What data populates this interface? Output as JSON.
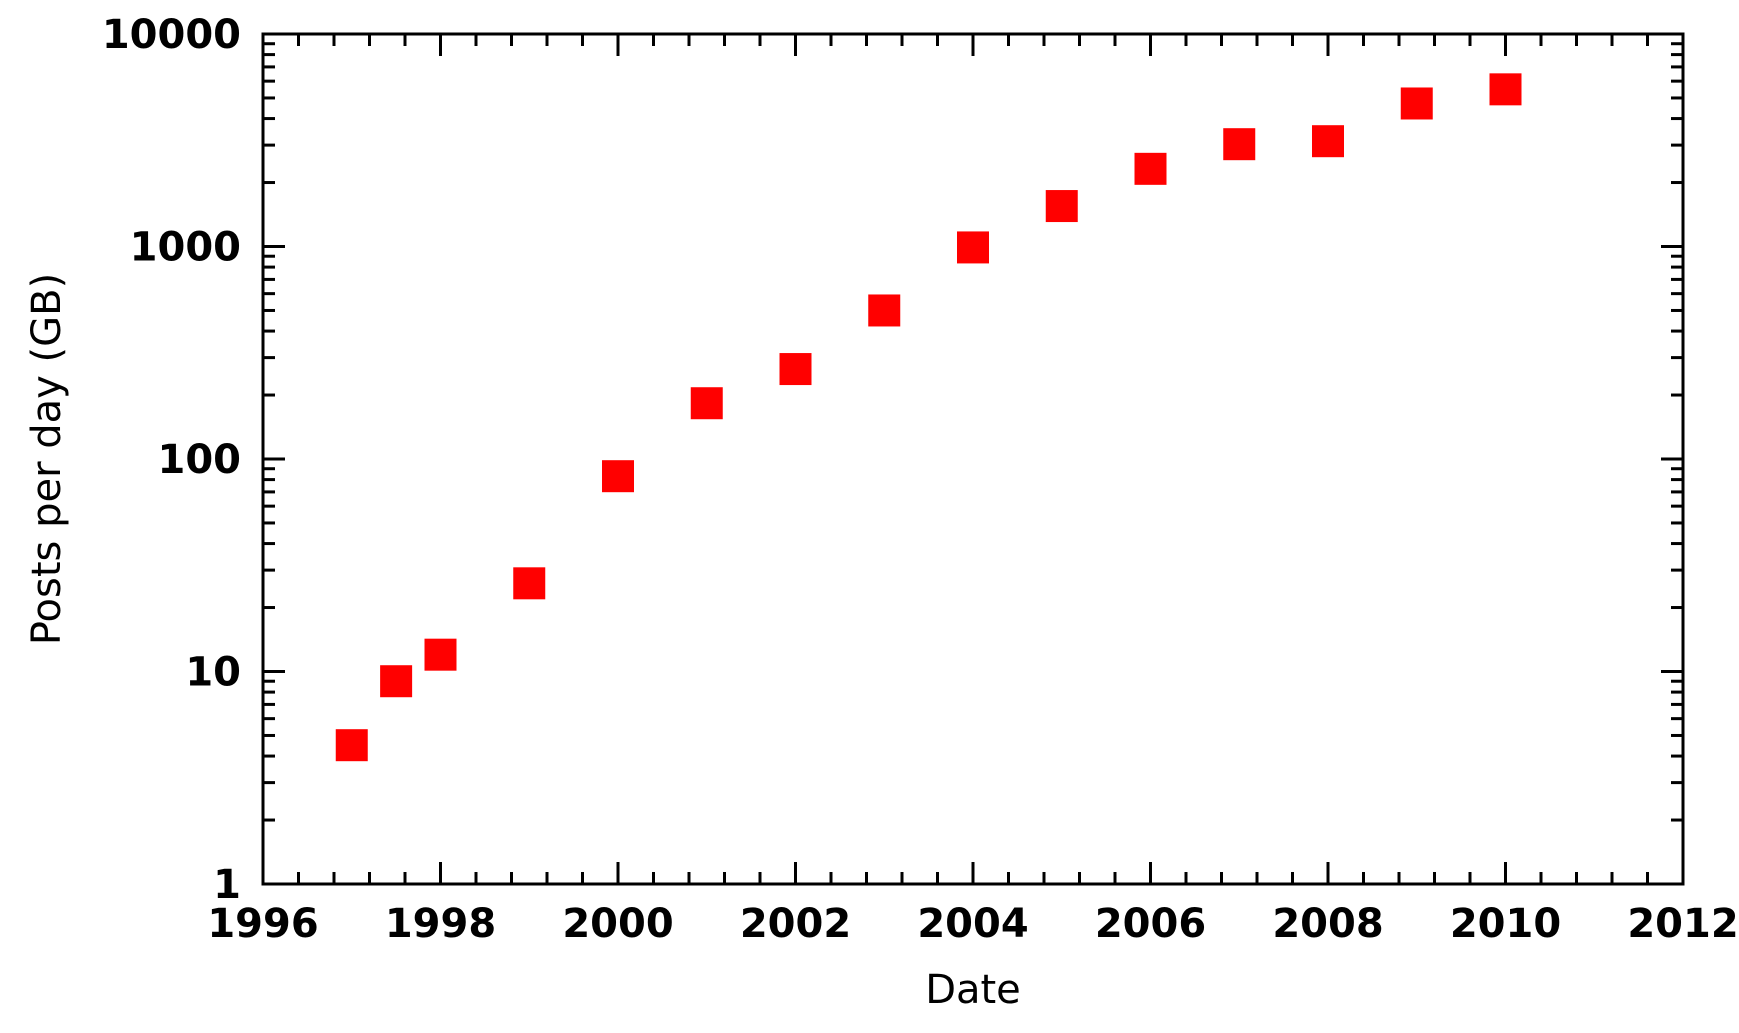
{
  "chart_data": {
    "type": "scatter",
    "xlabel": "Date",
    "ylabel": "Posts per day (GB)",
    "xlim": [
      1996,
      2012
    ],
    "ylim": [
      1,
      10000
    ],
    "yscale": "log",
    "grid": false,
    "x_ticks": [
      "1996",
      "1998",
      "2000",
      "2002",
      "2004",
      "2006",
      "2008",
      "2010",
      "2012"
    ],
    "y_ticks": [
      "1",
      "10",
      "100",
      "1000",
      "10000"
    ],
    "marker_color": "#ff0000",
    "series": [
      {
        "x": [
          1997.0,
          1997.5,
          1998.0,
          1999.0,
          2000.0,
          2001.0,
          2002.0,
          2003.0,
          2004.0,
          2005.0,
          2006.0,
          2007.0,
          2008.0,
          2009.0,
          2010.0
        ],
        "y": [
          4.5,
          9,
          12,
          26,
          83,
          183,
          265,
          500,
          990,
          1550,
          2320,
          3030,
          3130,
          4710,
          5490
        ]
      }
    ]
  }
}
